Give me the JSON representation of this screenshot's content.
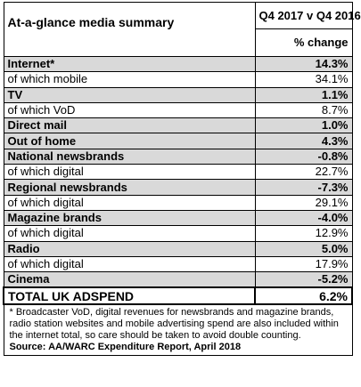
{
  "header": {
    "title": "At-a-glance media summary",
    "period": "Q4 2017 v Q4 2016",
    "measure": "% change"
  },
  "table": {
    "groups": [
      {
        "label": "Internet*",
        "value": "14.3%",
        "sub": [
          {
            "label": "of which mobile",
            "value": "34.1%"
          }
        ]
      },
      {
        "label": "TV",
        "value": "1.1%",
        "sub": [
          {
            "label": "of which VoD",
            "value": "8.7%"
          }
        ]
      },
      {
        "label": "Direct mail",
        "value": "1.0%",
        "sub": []
      },
      {
        "label": "Out of home",
        "value": "4.3%",
        "sub": []
      },
      {
        "label": "National newsbrands",
        "value": "-0.8%",
        "sub": [
          {
            "label": "of which digital",
            "value": "22.7%"
          }
        ]
      },
      {
        "label": "Regional newsbrands",
        "value": "-7.3%",
        "sub": [
          {
            "label": "of which digital",
            "value": "29.1%"
          }
        ]
      },
      {
        "label": "Magazine brands",
        "value": "-4.0%",
        "sub": [
          {
            "label": "of which digital",
            "value": "12.9%"
          }
        ]
      },
      {
        "label": "Radio",
        "value": "5.0%",
        "sub": [
          {
            "label": "of which digital",
            "value": "17.9%"
          }
        ]
      },
      {
        "label": "Cinema",
        "value": "-5.2%",
        "sub": []
      }
    ],
    "total": {
      "label": "TOTAL UK ADSPEND",
      "value": "6.2%"
    }
  },
  "footnote": {
    "text": "* Broadcaster VoD, digital revenues for newsbrands and magazine brands, radio station websites and mobile advertising spend are also included within the internet total, so care should be taken to avoid double counting.",
    "source": "Source: AA/WARC Expenditure Report, April 2018"
  }
}
